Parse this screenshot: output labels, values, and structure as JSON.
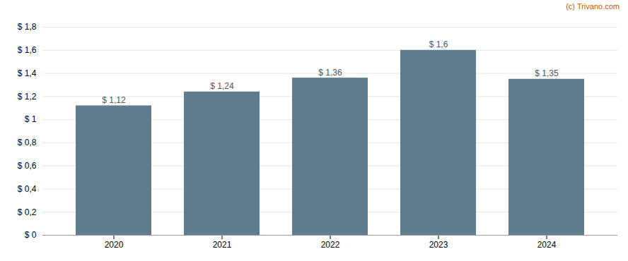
{
  "chart_data": {
    "type": "bar",
    "categories": [
      "2020",
      "2021",
      "2022",
      "2023",
      "2024"
    ],
    "values": [
      1.12,
      1.24,
      1.36,
      1.6,
      1.35
    ],
    "value_labels": [
      "$ 1,12",
      "$ 1,24",
      "$ 1,36",
      "$ 1,6",
      "$ 1,35"
    ],
    "color": "#5f7d8e",
    "ylim": [
      0,
      1.8
    ],
    "yticks": [
      {
        "value": 0,
        "label": "$ 0"
      },
      {
        "value": 0.2,
        "label": "$ 0,2"
      },
      {
        "value": 0.4,
        "label": "$ 0,4"
      },
      {
        "value": 0.6,
        "label": "$ 0,6"
      },
      {
        "value": 0.8,
        "label": "$ 0,8"
      },
      {
        "value": 1.0,
        "label": "$ 1"
      },
      {
        "value": 1.2,
        "label": "$ 1,2"
      },
      {
        "value": 1.4,
        "label": "$ 1,4"
      },
      {
        "value": 1.6,
        "label": "$ 1,6"
      },
      {
        "value": 1.8,
        "label": "$ 1,8"
      }
    ],
    "grid": true,
    "data_labels": true,
    "annotations": [
      {
        "text": "(c) Trivano.com",
        "color": "#cc5500"
      }
    ]
  }
}
